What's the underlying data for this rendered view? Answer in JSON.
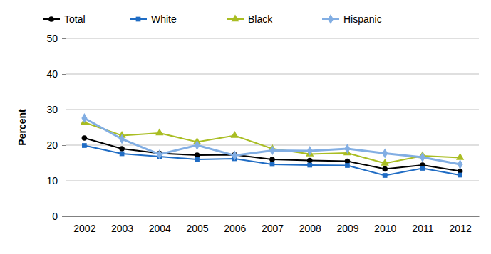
{
  "chart_data": {
    "type": "line",
    "y_label": "Percent",
    "categories": [
      "2002",
      "2003",
      "2004",
      "2005",
      "2006",
      "2007",
      "2008",
      "2009",
      "2010",
      "2011",
      "2012"
    ],
    "series": [
      {
        "name": "Total",
        "color": "#000000",
        "marker": "circle",
        "values": [
          22.0,
          19.0,
          17.7,
          17.2,
          17.3,
          16.0,
          15.7,
          15.5,
          13.3,
          14.4,
          12.7
        ]
      },
      {
        "name": "White",
        "color": "#1f6cc4",
        "marker": "square",
        "values": [
          19.9,
          17.6,
          16.8,
          16.0,
          16.2,
          14.6,
          14.4,
          14.3,
          11.5,
          13.5,
          11.6
        ]
      },
      {
        "name": "Black",
        "color": "#a9bd22",
        "marker": "triangle",
        "values": [
          26.4,
          22.7,
          23.4,
          20.9,
          22.7,
          19.0,
          17.5,
          17.8,
          14.9,
          17.0,
          16.5
        ]
      },
      {
        "name": "Hispanic",
        "color": "#82aee3",
        "marker": "diamond",
        "values": [
          27.6,
          21.7,
          17.4,
          20.0,
          17.1,
          18.5,
          18.4,
          19.0,
          17.7,
          16.6,
          14.6
        ]
      }
    ],
    "ylim": [
      0,
      50
    ],
    "yticks": [
      0,
      10,
      20,
      30,
      40,
      50
    ],
    "grid": true,
    "legend": "top"
  }
}
